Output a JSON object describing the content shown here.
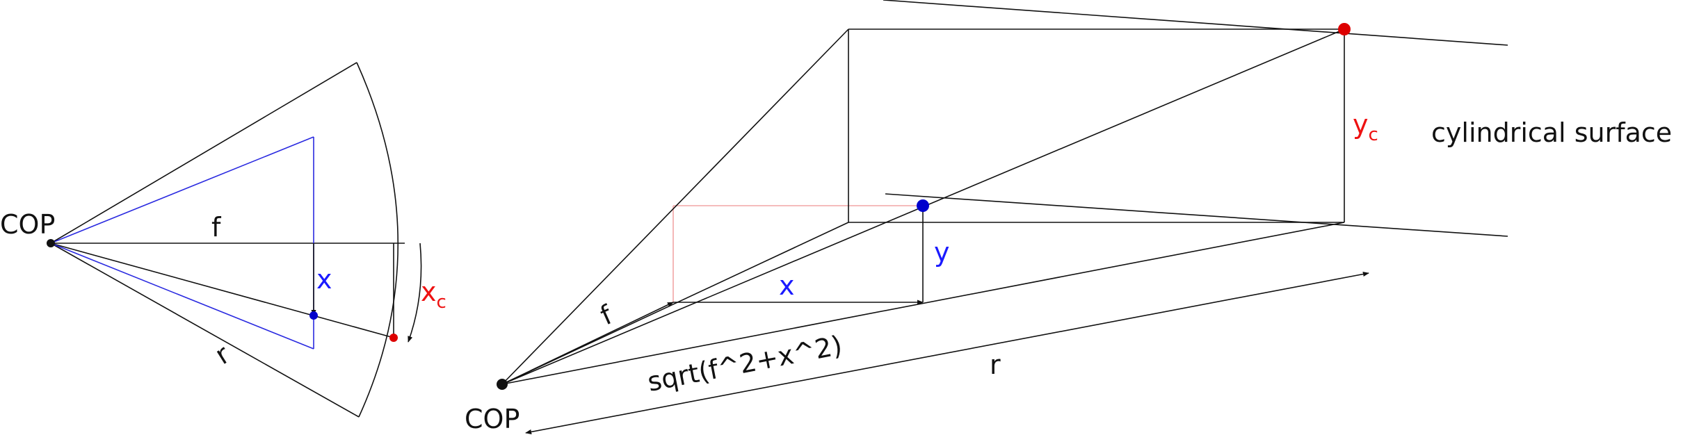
{
  "colors": {
    "line": "#111111",
    "blue": "#1a1aff",
    "red": "#ee1111",
    "pink": "#f2a5a5",
    "point_blue": "#0000cc",
    "point_red": "#dd0000"
  },
  "left": {
    "cop_label": "COP",
    "f_label": "f",
    "x_label": "x",
    "xc_main": "x",
    "xc_sub": "c",
    "r_label": "r"
  },
  "right": {
    "cop_label": "COP",
    "f_label": "f",
    "x_label": "x",
    "y_label": "y",
    "yc_main": "y",
    "yc_sub": "c",
    "sqrt_label": "sqrt(f^2+x^2)",
    "r_label": "r",
    "surface_label": "cylindrical surface"
  }
}
